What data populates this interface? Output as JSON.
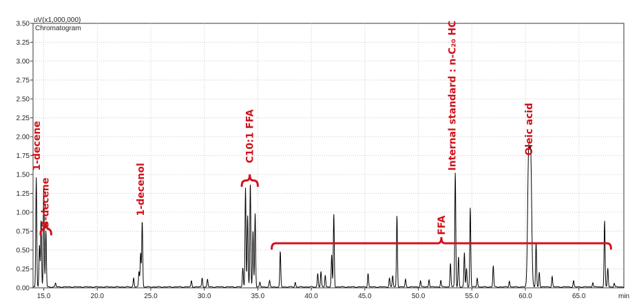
{
  "chart_data": {
    "type": "line",
    "ylabel": "uV(x1,000,000)",
    "subtitle": "Chromatogram",
    "xlabel": "min",
    "xlim": [
      14.0,
      69.2
    ],
    "ylim": [
      0.0,
      3.5
    ],
    "x_ticks": [
      "15.0",
      "20.0",
      "25.0",
      "30.0",
      "35.0",
      "40.0",
      "45.0",
      "50.0",
      "55.0",
      "60.0",
      "65.0"
    ],
    "y_ticks": [
      "0.00",
      "0.25",
      "0.50",
      "0.75",
      "1.00",
      "1.25",
      "1.50",
      "1.75",
      "2.00",
      "2.25",
      "2.50",
      "2.75",
      "3.00",
      "3.25",
      "3.50"
    ],
    "grid": true,
    "series": [
      {
        "color": "#000000",
        "peaks": [
          {
            "x": 14.3,
            "y": 1.45
          },
          {
            "x": 14.6,
            "y": 0.55
          },
          {
            "x": 14.75,
            "y": 0.9
          },
          {
            "x": 15.0,
            "y": 1.35
          },
          {
            "x": 15.2,
            "y": 0.75
          },
          {
            "x": 16.1,
            "y": 0.05
          },
          {
            "x": 23.4,
            "y": 0.12
          },
          {
            "x": 23.9,
            "y": 0.2
          },
          {
            "x": 24.05,
            "y": 0.45
          },
          {
            "x": 24.2,
            "y": 0.88
          },
          {
            "x": 28.8,
            "y": 0.08
          },
          {
            "x": 29.8,
            "y": 0.12
          },
          {
            "x": 30.3,
            "y": 0.1
          },
          {
            "x": 33.6,
            "y": 0.25
          },
          {
            "x": 33.85,
            "y": 1.32
          },
          {
            "x": 34.05,
            "y": 0.95
          },
          {
            "x": 34.3,
            "y": 1.38
          },
          {
            "x": 34.55,
            "y": 0.75
          },
          {
            "x": 34.75,
            "y": 0.98
          },
          {
            "x": 35.2,
            "y": 0.06
          },
          {
            "x": 36.1,
            "y": 0.08
          },
          {
            "x": 37.1,
            "y": 0.47
          },
          {
            "x": 38.5,
            "y": 0.06
          },
          {
            "x": 40.6,
            "y": 0.18
          },
          {
            "x": 40.9,
            "y": 0.2
          },
          {
            "x": 41.3,
            "y": 0.16
          },
          {
            "x": 41.9,
            "y": 0.42
          },
          {
            "x": 42.1,
            "y": 0.97
          },
          {
            "x": 45.3,
            "y": 0.18
          },
          {
            "x": 47.3,
            "y": 0.12
          },
          {
            "x": 47.6,
            "y": 0.15
          },
          {
            "x": 48.0,
            "y": 0.95
          },
          {
            "x": 48.8,
            "y": 0.1
          },
          {
            "x": 50.2,
            "y": 0.08
          },
          {
            "x": 51.0,
            "y": 0.1
          },
          {
            "x": 52.1,
            "y": 0.09
          },
          {
            "x": 53.0,
            "y": 0.32
          },
          {
            "x": 53.45,
            "y": 1.52
          },
          {
            "x": 53.75,
            "y": 0.4
          },
          {
            "x": 54.3,
            "y": 0.45
          },
          {
            "x": 54.5,
            "y": 0.25
          },
          {
            "x": 54.85,
            "y": 1.05
          },
          {
            "x": 55.5,
            "y": 0.12
          },
          {
            "x": 57.0,
            "y": 0.28
          },
          {
            "x": 58.5,
            "y": 0.08
          },
          {
            "x": 60.3,
            "y": 1.7
          },
          {
            "x": 60.5,
            "y": 1.68
          },
          {
            "x": 61.0,
            "y": 0.58
          },
          {
            "x": 61.3,
            "y": 0.2
          },
          {
            "x": 62.5,
            "y": 0.14
          },
          {
            "x": 64.5,
            "y": 0.08
          },
          {
            "x": 66.3,
            "y": 0.06
          },
          {
            "x": 67.4,
            "y": 0.88
          },
          {
            "x": 67.7,
            "y": 0.25
          },
          {
            "x": 68.3,
            "y": 0.05
          }
        ]
      }
    ],
    "annotations": [
      {
        "text": "1-decene",
        "x": 14.4,
        "y": 1.55
      },
      {
        "text": "3-decene",
        "x": 15.2,
        "y": 0.8
      },
      {
        "text": "1-decenol",
        "x": 24.1,
        "y": 0.95
      },
      {
        "text": "C10:1 FFA",
        "x": 34.3,
        "y": 1.65
      },
      {
        "text": "FFA",
        "x": 52.2,
        "y": 0.7
      },
      {
        "text": "Internal standard : n-C₂₀ HC",
        "x": 53.2,
        "y": 1.55
      },
      {
        "text": "Oleic acid",
        "x": 60.4,
        "y": 1.75
      }
    ]
  }
}
